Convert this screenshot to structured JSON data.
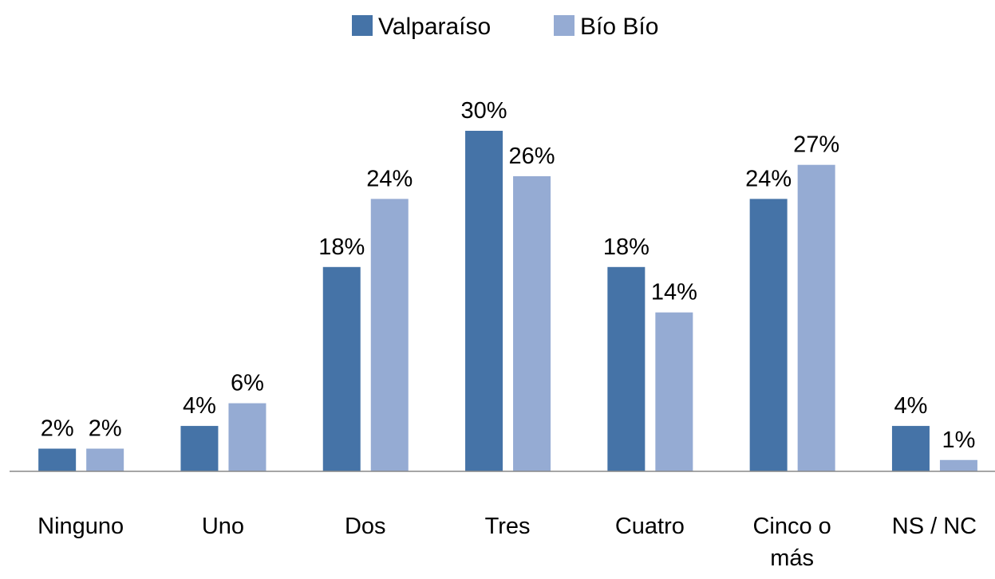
{
  "chart_data": {
    "type": "bar",
    "categories": [
      "Ninguno",
      "Uno",
      "Dos",
      "Tres",
      "Cuatro",
      "Cinco o más",
      "NS / NC"
    ],
    "series": [
      {
        "name": "Valparaíso",
        "color": "#4573a7",
        "values": [
          2,
          4,
          18,
          30,
          18,
          24,
          4
        ],
        "value_labels": [
          "2%",
          "4%",
          "18%",
          "30%",
          "18%",
          "24%",
          "4%"
        ]
      },
      {
        "name": "Bío Bío",
        "color": "#95abd3",
        "values": [
          2,
          6,
          24,
          26,
          14,
          27,
          1
        ],
        "value_labels": [
          "2%",
          "6%",
          "24%",
          "26%",
          "14%",
          "27%",
          "1%"
        ]
      }
    ],
    "legend": "top"
  }
}
